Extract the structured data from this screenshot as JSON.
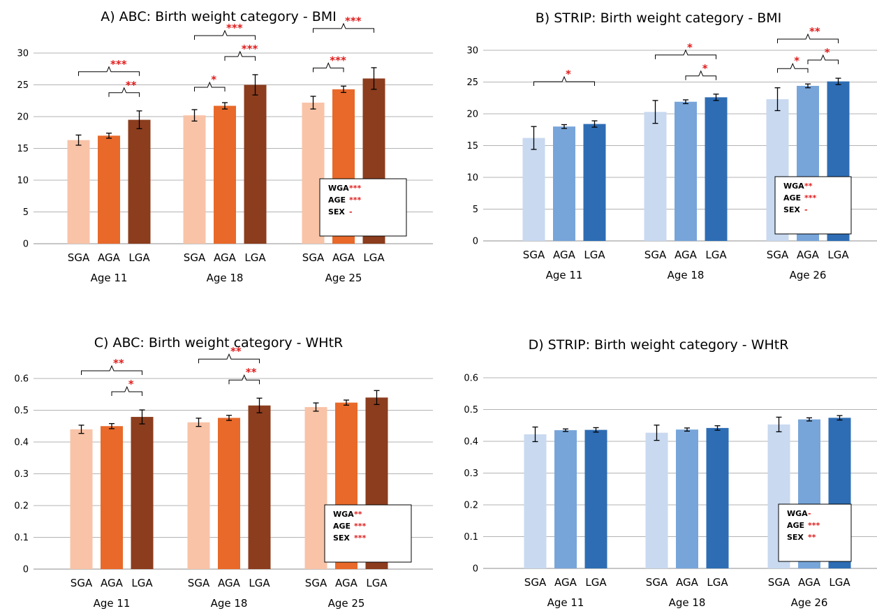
{
  "chart_data": [
    {
      "type": "bar",
      "title": "A) ABC: Birth weight category - BMI",
      "ylim": [
        0,
        30
      ],
      "yticks": [
        0,
        5,
        10,
        15,
        20,
        25,
        30
      ],
      "grid": true,
      "groups": [
        {
          "label": "Age 11",
          "categories": [
            "SGA",
            "AGA",
            "LGA"
          ],
          "values": [
            16.3,
            17.0,
            19.5
          ],
          "errors": [
            0.8,
            0.4,
            1.4
          ]
        },
        {
          "label": "Age 18",
          "categories": [
            "SGA",
            "AGA",
            "LGA"
          ],
          "values": [
            20.2,
            21.7,
            25.0
          ],
          "errors": [
            0.9,
            0.5,
            1.6
          ]
        },
        {
          "label": "Age 25",
          "categories": [
            "SGA",
            "AGA",
            "LGA"
          ],
          "values": [
            22.2,
            24.3,
            26.0
          ],
          "errors": [
            1.0,
            0.5,
            1.7
          ]
        }
      ],
      "colors": [
        "#f9c3a7",
        "#e8692a",
        "#8b3d1e"
      ],
      "significance": [
        {
          "group": 0,
          "from": 0,
          "to": 2,
          "level": 0,
          "label": "***"
        },
        {
          "group": 0,
          "from": 1,
          "to": 2,
          "level": 1,
          "label": "**"
        },
        {
          "group": 1,
          "from": 0,
          "to": 2,
          "level": 0,
          "label": "***"
        },
        {
          "group": 1,
          "from": 1,
          "to": 2,
          "level": 1,
          "label": "***"
        },
        {
          "group": 1,
          "from": 0,
          "to": 1,
          "level": 2,
          "label": "*"
        },
        {
          "group": 2,
          "from": 0,
          "to": 2,
          "level": 0,
          "label": "***"
        },
        {
          "group": 2,
          "from": 0,
          "to": 1,
          "level": 1,
          "label": "***"
        }
      ],
      "legend": {
        "placement": "bottom-right",
        "rows": [
          {
            "label": "WGA",
            "sig": "***"
          },
          {
            "label": "AGE",
            "sig": "***"
          },
          {
            "label": "SEX",
            "sig": "-"
          }
        ]
      }
    },
    {
      "type": "bar",
      "title": "B) STRIP: Birth weight category - BMI",
      "ylim": [
        0,
        30
      ],
      "yticks": [
        0,
        5,
        10,
        15,
        20,
        25,
        30
      ],
      "grid": true,
      "groups": [
        {
          "label": "Age 11",
          "categories": [
            "SGA",
            "AGA",
            "LGA"
          ],
          "values": [
            16.2,
            18.0,
            18.4
          ],
          "errors": [
            1.8,
            0.3,
            0.5
          ]
        },
        {
          "label": "Age 18",
          "categories": [
            "SGA",
            "AGA",
            "LGA"
          ],
          "values": [
            20.3,
            21.9,
            22.6
          ],
          "errors": [
            1.8,
            0.3,
            0.5
          ]
        },
        {
          "label": "Age 26",
          "categories": [
            "SGA",
            "AGA",
            "LGA"
          ],
          "values": [
            22.3,
            24.4,
            25.1
          ],
          "errors": [
            1.8,
            0.3,
            0.5
          ]
        }
      ],
      "colors": [
        "#c8d9f0",
        "#77a5da",
        "#2e6db4"
      ],
      "significance": [
        {
          "group": 0,
          "from": 0,
          "to": 2,
          "level": 0,
          "label": "*"
        },
        {
          "group": 1,
          "from": 0,
          "to": 2,
          "level": 0,
          "label": "*"
        },
        {
          "group": 1,
          "from": 1,
          "to": 2,
          "level": 1,
          "label": "*"
        },
        {
          "group": 2,
          "from": 0,
          "to": 2,
          "level": 0,
          "label": "**"
        },
        {
          "group": 2,
          "from": 1,
          "to": 2,
          "level": 1,
          "label": "*"
        },
        {
          "group": 2,
          "from": 0,
          "to": 1,
          "level": 2,
          "label": "*"
        }
      ],
      "legend": {
        "placement": "bottom-right",
        "rows": [
          {
            "label": "WGA",
            "sig": "**"
          },
          {
            "label": "AGE",
            "sig": "***"
          },
          {
            "label": "SEX",
            "sig": "-"
          }
        ]
      }
    },
    {
      "type": "bar",
      "title": "C) ABC: Birth weight category - WHtR",
      "ylim": [
        0,
        0.6
      ],
      "yticks": [
        0,
        0.1,
        0.2,
        0.3,
        0.4,
        0.5,
        0.6
      ],
      "grid": true,
      "groups": [
        {
          "label": "Age 11",
          "categories": [
            "SGA",
            "AGA",
            "LGA"
          ],
          "values": [
            0.44,
            0.45,
            0.479
          ],
          "errors": [
            0.013,
            0.008,
            0.022
          ]
        },
        {
          "label": "Age 18",
          "categories": [
            "SGA",
            "AGA",
            "LGA"
          ],
          "values": [
            0.462,
            0.476,
            0.515
          ],
          "errors": [
            0.013,
            0.008,
            0.023
          ]
        },
        {
          "label": "Age 25",
          "categories": [
            "SGA",
            "AGA",
            "LGA"
          ],
          "values": [
            0.51,
            0.524,
            0.54
          ],
          "errors": [
            0.013,
            0.008,
            0.022
          ]
        }
      ],
      "colors": [
        "#f9c3a7",
        "#e8692a",
        "#8b3d1e"
      ],
      "significance": [
        {
          "group": 0,
          "from": 0,
          "to": 2,
          "level": 0,
          "label": "**"
        },
        {
          "group": 0,
          "from": 1,
          "to": 2,
          "level": 1,
          "label": "*"
        },
        {
          "group": 1,
          "from": 0,
          "to": 2,
          "level": 0,
          "label": "**"
        },
        {
          "group": 1,
          "from": 1,
          "to": 2,
          "level": 1,
          "label": "**"
        }
      ],
      "legend": {
        "placement": "bottom-right",
        "rows": [
          {
            "label": "WGA",
            "sig": "**"
          },
          {
            "label": "AGE",
            "sig": "***"
          },
          {
            "label": "SEX",
            "sig": "***"
          }
        ]
      }
    },
    {
      "type": "bar",
      "title": "D) STRIP: Birth weight category - WHtR",
      "ylim": [
        0,
        0.6
      ],
      "yticks": [
        0,
        0.1,
        0.2,
        0.3,
        0.4,
        0.5,
        0.6
      ],
      "grid": true,
      "groups": [
        {
          "label": "Age 11",
          "categories": [
            "SGA",
            "AGA",
            "LGA"
          ],
          "values": [
            0.422,
            0.435,
            0.436
          ],
          "errors": [
            0.023,
            0.004,
            0.007
          ]
        },
        {
          "label": "Age 18",
          "categories": [
            "SGA",
            "AGA",
            "LGA"
          ],
          "values": [
            0.427,
            0.437,
            0.442
          ],
          "errors": [
            0.024,
            0.005,
            0.007
          ]
        },
        {
          "label": "Age 26",
          "categories": [
            "SGA",
            "AGA",
            "LGA"
          ],
          "values": [
            0.453,
            0.469,
            0.474
          ],
          "errors": [
            0.023,
            0.005,
            0.007
          ]
        }
      ],
      "colors": [
        "#c8d9f0",
        "#77a5da",
        "#2e6db4"
      ],
      "significance": [],
      "legend": {
        "placement": "bottom-right",
        "rows": [
          {
            "label": "WGA",
            "sig": "-"
          },
          {
            "label": "AGE",
            "sig": "***"
          },
          {
            "label": "SEX",
            "sig": "**"
          }
        ]
      }
    }
  ]
}
